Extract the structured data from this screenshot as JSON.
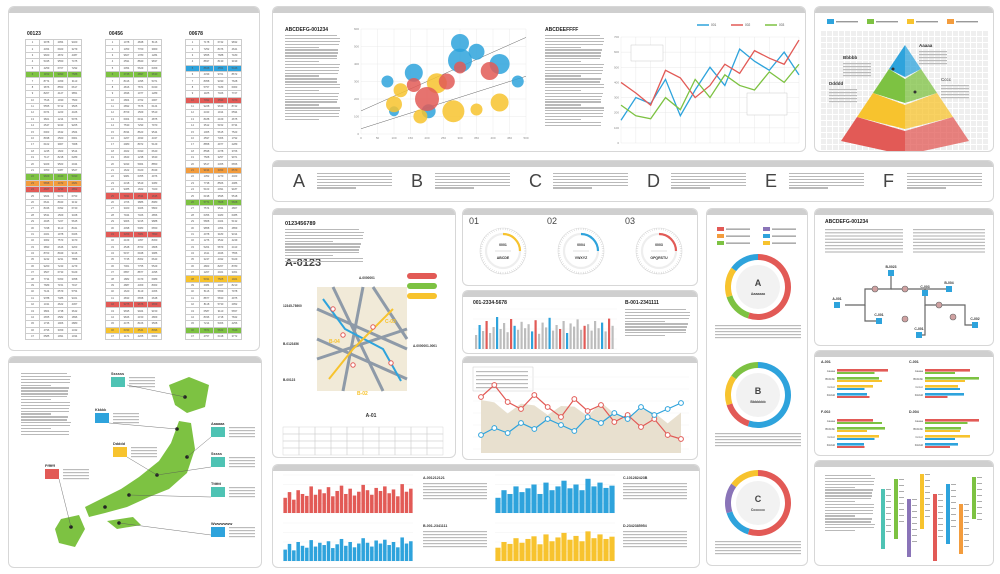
{
  "colors": {
    "blue": "#2ea3dc",
    "red": "#e25a56",
    "green": "#7dc242",
    "yellow": "#f7c32e",
    "orange": "#f39c3d",
    "gray": "#bdbdbd",
    "purple": "#8a74b8",
    "teal": "#4ec3b4"
  },
  "tables": {
    "headers": [
      "00123",
      "00456",
      "00678"
    ]
  },
  "bubble": {
    "title": "ABCDEFG-001234",
    "xticks": [
      "0",
      "50",
      "100",
      "150",
      "200",
      "250",
      "300",
      "350",
      "400",
      "450",
      "500"
    ],
    "yticks": [
      "600",
      "500",
      "400",
      "300",
      "200",
      "100",
      "0"
    ]
  },
  "lineTop": {
    "title": "ABCDEEFFFF",
    "legend": [
      "001",
      "002",
      "003"
    ],
    "yticks": [
      "700",
      "600",
      "500",
      "400",
      "300",
      "200",
      "100",
      "0"
    ]
  },
  "pyramid": {
    "labels": [
      "Aaaaa",
      "Bbbbb",
      "Cccc",
      "Ddddd"
    ]
  },
  "letters": [
    "A",
    "B",
    "C",
    "D",
    "E",
    "F"
  ],
  "mapPanel": {
    "title": "0123456789",
    "code": "A-0123",
    "roads": [
      "B-04",
      "B-02",
      "A-01",
      "C-03"
    ],
    "notes": [
      "12345-78900",
      "A-0000001",
      "B-0123456",
      "B-00123",
      "A-0000001-0001"
    ]
  },
  "dials": [
    {
      "num": "01",
      "code": "0001",
      "name": "ABCDE"
    },
    {
      "num": "02",
      "code": "0004",
      "name": "VWXYZ"
    },
    {
      "num": "03",
      "code": "0003",
      "name": "OPQRSTU"
    }
  ],
  "barTitles": [
    "001-2334-5678",
    "B-001-2341111"
  ],
  "donuts": [
    {
      "letter": "A",
      "name": "Aaaaaaa"
    },
    {
      "letter": "B",
      "name": "Bbbbbbb"
    },
    {
      "letter": "C",
      "name": "Ccccccc"
    }
  ],
  "tree": {
    "title": "ABCDEFG-001234",
    "nodes": [
      "B-0023",
      "A-001",
      "C-001",
      "C-003",
      "B-004",
      "C-002",
      "C-001"
    ]
  },
  "hbars": {
    "titles": [
      "A-001",
      "C-001",
      "F-002",
      "D-004"
    ],
    "cats": [
      "Aaaaa",
      "Bbbbbb",
      "Ccccc",
      "Ddddd"
    ]
  },
  "japan": {
    "labels": [
      "Ssssss",
      "Kkkkk",
      "Ddddd",
      "Aaaaaa",
      "Sssss",
      "Ttttttt",
      "Wwwwwww",
      "Fffffff"
    ]
  },
  "bottom": {
    "titles": [
      "A-001212121",
      "B-001-2341111",
      "C-101282423B",
      "D-2342385954"
    ]
  },
  "chart_data": [
    {
      "type": "scatter",
      "title": "ABCDEFG-001234",
      "xlim": [
        0,
        500
      ],
      "ylim": [
        0,
        600
      ],
      "series": [
        {
          "color": "#2ea3dc",
          "x": [
            80,
            160,
            205,
            300,
            350,
            420,
            475,
            300,
            100
          ],
          "y": [
            300,
            350,
            130,
            420,
            470,
            400,
            300,
            520,
            130
          ],
          "size": [
            6,
            9,
            7,
            12,
            8,
            10,
            6,
            9,
            5
          ]
        },
        {
          "color": "#f7c32e",
          "x": [
            100,
            120,
            230,
            280,
            180,
            420,
            350
          ],
          "y": [
            170,
            250,
            290,
            130,
            100,
            180,
            140
          ],
          "size": [
            8,
            7,
            10,
            11,
            7,
            9,
            6
          ]
        },
        {
          "color": "#e25a56",
          "x": [
            160,
            200,
            260,
            390,
            300
          ],
          "y": [
            280,
            200,
            300,
            360,
            380
          ],
          "size": [
            7,
            12,
            8,
            9,
            6
          ]
        }
      ]
    },
    {
      "type": "line",
      "title": "ABCDEEFFFF",
      "ylim": [
        0,
        700
      ],
      "series": [
        {
          "name": "001",
          "values": [
            150,
            300,
            260,
            420,
            180,
            350,
            500,
            380,
            620,
            540,
            480,
            600,
            450
          ]
        },
        {
          "name": "002",
          "values": [
            400,
            330,
            250,
            480,
            430,
            300,
            380,
            520,
            460,
            610,
            560,
            520,
            680
          ]
        },
        {
          "name": "003",
          "values": [
            250,
            180,
            160,
            300,
            220,
            420,
            300,
            450,
            380,
            350,
            470,
            400,
            520
          ]
        }
      ]
    },
    {
      "type": "bar",
      "title": "001-2334-5678",
      "values": [
        35,
        60,
        45,
        70,
        40,
        55,
        80,
        50,
        65,
        42,
        75,
        58,
        48,
        68,
        52,
        62,
        44,
        72,
        38,
        66,
        54,
        78,
        46,
        60,
        50,
        70,
        40,
        64,
        56,
        74,
        48,
        58,
        62,
        46,
        70,
        52,
        66,
        44,
        76,
        58
      ]
    },
    {
      "type": "bar",
      "title": "B-001-2341111",
      "values": [
        55,
        70,
        48,
        82,
        60,
        72,
        50,
        66,
        58,
        76,
        64,
        52,
        80,
        62,
        70,
        54,
        68,
        74,
        56,
        60
      ]
    },
    {
      "type": "line",
      "title": "",
      "series": [
        {
          "name": "red",
          "values": [
            60,
            72,
            55,
            48,
            62,
            50,
            40,
            58,
            46,
            52,
            35,
            42,
            30,
            38,
            22,
            18
          ]
        },
        {
          "name": "blue",
          "values": [
            18,
            25,
            20,
            30,
            24,
            34,
            28,
            22,
            36,
            30,
            40,
            34,
            46,
            38,
            44,
            50
          ]
        }
      ]
    },
    {
      "type": "bar",
      "title": "A-001212121",
      "values": [
        40,
        55,
        35,
        60,
        50,
        45,
        70,
        48,
        62,
        52,
        68,
        44,
        58,
        72,
        50,
        64,
        46,
        56,
        74,
        60,
        48,
        66,
        58,
        70,
        52,
        62,
        44,
        76,
        56,
        64
      ]
    },
    {
      "type": "bar",
      "title": "B-001-2341111",
      "values": [
        30,
        45,
        28,
        50,
        40,
        35,
        55,
        38,
        48,
        42,
        52,
        34,
        44,
        58,
        40,
        50,
        36,
        46,
        60,
        48,
        38,
        54,
        46,
        56,
        42,
        50,
        36,
        62,
        46,
        52
      ]
    },
    {
      "type": "bar",
      "title": "C-101282423B",
      "values": [
        40,
        60,
        50,
        70,
        55,
        65,
        75,
        50,
        80,
        60,
        70,
        85,
        65,
        75,
        60,
        90,
        70,
        80,
        66,
        72
      ]
    },
    {
      "type": "bar",
      "title": "D-2342385954",
      "values": [
        35,
        50,
        45,
        60,
        48,
        58,
        65,
        44,
        70,
        52,
        62,
        74,
        56,
        66,
        52,
        78,
        60,
        70,
        58,
        64
      ]
    },
    {
      "type": "bar",
      "title": "",
      "orientation": "horizontal",
      "categories": [
        "Aaaaa",
        "Bbbbbb",
        "Ccccc",
        "Ddddd"
      ],
      "values": [
        85,
        60,
        72,
        48
      ]
    }
  ]
}
